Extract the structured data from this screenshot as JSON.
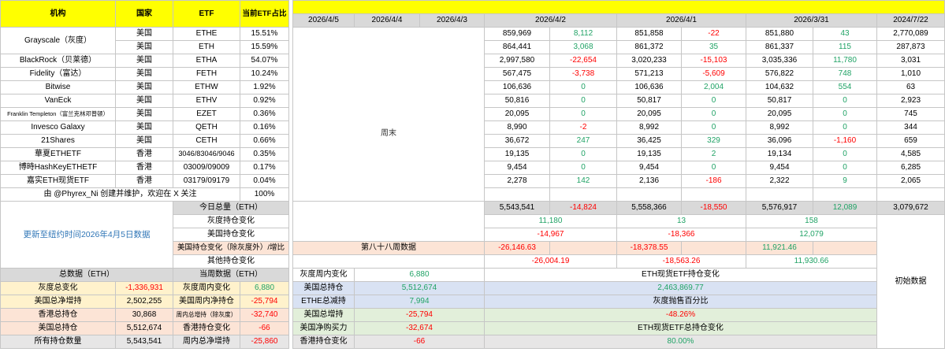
{
  "palette": {
    "yellow": "#FFFF00",
    "header_gray": "#D9D9D9",
    "light_yellow": "#FFF2CC",
    "peach": "#FCE4D6",
    "light_blue": "#D9E2F3",
    "light_green": "#E2EFDA",
    "light_gray": "#E7E6E6",
    "green": "#21A366",
    "red": "#FF0000",
    "blue": "#2E75B6",
    "black": "#000000",
    "grid": "#C6C6C6"
  },
  "header": {
    "left_columns": [
      "机构",
      "国家",
      "ETF",
      "当前ETF占比"
    ],
    "date_columns": [
      "2026/4/5",
      "2026/4/4",
      "2026/4/3",
      "2026/4/2",
      "2026/4/1",
      "2026/3/31",
      "2024/7/22"
    ]
  },
  "weekend_label": "周末",
  "week_label": "第八十八周数据",
  "update_note": "更新至纽约时间2026年4月5日数据",
  "initial_data_label": "初始数据",
  "maintainer": {
    "note": "由 @Phyrex_Ni 创建并维护，欢迎在 X 关注",
    "total_share": "100%"
  },
  "etf_rows": [
    {
      "org": "Grayscale（灰度）",
      "rowspan": 2,
      "country": "美国",
      "ticker": "ETHE",
      "share": "15.51%",
      "cols": [
        [
          "859,969",
          "k"
        ],
        [
          "8,112",
          "g"
        ],
        [
          "851,858",
          "k"
        ],
        [
          "-22",
          "r"
        ],
        [
          "851,880",
          "k"
        ],
        [
          "43",
          "g"
        ],
        [
          "2,770,089",
          "k"
        ]
      ]
    },
    {
      "org": null,
      "country": "美国",
      "ticker": "ETH",
      "share": "15.59%",
      "cols": [
        [
          "864,441",
          "k"
        ],
        [
          "3,068",
          "g"
        ],
        [
          "861,372",
          "k"
        ],
        [
          "35",
          "g"
        ],
        [
          "861,337",
          "k"
        ],
        [
          "115",
          "g"
        ],
        [
          "287,873",
          "k"
        ]
      ]
    },
    {
      "org": "BlackRock（贝莱德）",
      "country": "美国",
      "ticker": "ETHA",
      "share": "54.07%",
      "cols": [
        [
          "2,997,580",
          "k"
        ],
        [
          "-22,654",
          "r"
        ],
        [
          "3,020,233",
          "k"
        ],
        [
          "-15,103",
          "r"
        ],
        [
          "3,035,336",
          "k"
        ],
        [
          "11,780",
          "g"
        ],
        [
          "3,031",
          "k"
        ]
      ]
    },
    {
      "org": "Fidelity（富达）",
      "country": "美国",
      "ticker": "FETH",
      "share": "10.24%",
      "cols": [
        [
          "567,475",
          "k"
        ],
        [
          "-3,738",
          "r"
        ],
        [
          "571,213",
          "k"
        ],
        [
          "-5,609",
          "r"
        ],
        [
          "576,822",
          "k"
        ],
        [
          "748",
          "g"
        ],
        [
          "1,010",
          "k"
        ]
      ]
    },
    {
      "org": "Bitwise",
      "country": "美国",
      "ticker": "ETHW",
      "share": "1.92%",
      "cols": [
        [
          "106,636",
          "k"
        ],
        [
          "0",
          "g"
        ],
        [
          "106,636",
          "k"
        ],
        [
          "2,004",
          "g"
        ],
        [
          "104,632",
          "k"
        ],
        [
          "554",
          "g"
        ],
        [
          "63",
          "k"
        ]
      ]
    },
    {
      "org": "VanEck",
      "country": "美国",
      "ticker": "ETHV",
      "share": "0.92%",
      "cols": [
        [
          "50,816",
          "k"
        ],
        [
          "0",
          "g"
        ],
        [
          "50,817",
          "k"
        ],
        [
          "0",
          "g"
        ],
        [
          "50,817",
          "k"
        ],
        [
          "0",
          "g"
        ],
        [
          "2,923",
          "k"
        ]
      ]
    },
    {
      "org": "Franklin Templeton（富兰克林邓普顿）",
      "country": "美国",
      "ticker": "EZET",
      "share": "0.36%",
      "cols": [
        [
          "20,095",
          "k"
        ],
        [
          "0",
          "g"
        ],
        [
          "20,095",
          "k"
        ],
        [
          "0",
          "g"
        ],
        [
          "20,095",
          "k"
        ],
        [
          "0",
          "g"
        ],
        [
          "745",
          "k"
        ]
      ]
    },
    {
      "org": "Invesco Galaxy",
      "country": "美国",
      "ticker": "QETH",
      "share": "0.16%",
      "cols": [
        [
          "8,990",
          "k"
        ],
        [
          "-2",
          "r"
        ],
        [
          "8,992",
          "k"
        ],
        [
          "0",
          "g"
        ],
        [
          "8,992",
          "k"
        ],
        [
          "0",
          "g"
        ],
        [
          "344",
          "k"
        ]
      ]
    },
    {
      "org": "21Shares",
      "country": "美国",
      "ticker": "CETH",
      "share": "0.66%",
      "cols": [
        [
          "36,672",
          "k"
        ],
        [
          "247",
          "g"
        ],
        [
          "36,425",
          "k"
        ],
        [
          "329",
          "g"
        ],
        [
          "36,096",
          "k"
        ],
        [
          "-1,160",
          "r"
        ],
        [
          "659",
          "k"
        ]
      ]
    },
    {
      "org": "華夏ETHETF",
      "country": "香港",
      "ticker": "3046/83046/9046",
      "share": "0.35%",
      "cols": [
        [
          "19,135",
          "k"
        ],
        [
          "0",
          "g"
        ],
        [
          "19,135",
          "k"
        ],
        [
          "2",
          "g"
        ],
        [
          "19,134",
          "k"
        ],
        [
          "0",
          "g"
        ],
        [
          "4,585",
          "k"
        ]
      ]
    },
    {
      "org": "博時HashKeyETHETF",
      "country": "香港",
      "ticker": "03009/09009",
      "share": "0.17%",
      "cols": [
        [
          "9,454",
          "k"
        ],
        [
          "0",
          "g"
        ],
        [
          "9,454",
          "k"
        ],
        [
          "0",
          "g"
        ],
        [
          "9,454",
          "k"
        ],
        [
          "0",
          "g"
        ],
        [
          "6,285",
          "k"
        ]
      ]
    },
    {
      "org": "嘉实ETH现货ETF",
      "country": "香港",
      "ticker": "03179/09179",
      "share": "0.04%",
      "cols": [
        [
          "2,278",
          "k"
        ],
        [
          "142",
          "g"
        ],
        [
          "2,136",
          "k"
        ],
        [
          "-186",
          "r"
        ],
        [
          "2,322",
          "k"
        ],
        [
          "9",
          "g"
        ],
        [
          "2,065",
          "k"
        ]
      ]
    }
  ],
  "daily_summary": [
    {
      "label": "今日总量（ETH）",
      "type": "full",
      "cells": [
        [
          "5,543,541",
          "k"
        ],
        [
          "-14,824",
          "r"
        ],
        [
          "5,558,366",
          "k"
        ],
        [
          "-18,550",
          "r"
        ],
        [
          "5,576,917",
          "k"
        ],
        [
          "12,089",
          "g"
        ],
        [
          "3,079,672",
          "k"
        ]
      ]
    },
    {
      "label": "灰度持仓变化",
      "type": "merged",
      "cells": [
        [
          "11,180",
          "g"
        ],
        [
          "13",
          "g"
        ],
        [
          "158",
          "g"
        ]
      ]
    },
    {
      "label": "美国持仓变化",
      "type": "merged",
      "cells": [
        [
          "-14,967",
          "r"
        ],
        [
          "-18,366",
          "r"
        ],
        [
          "12,079",
          "g"
        ]
      ]
    },
    {
      "label": "美国持仓变化（除灰度外）/增比",
      "type": "week",
      "cells": [
        [
          "-26,146.63",
          "r"
        ],
        [
          "",
          "k"
        ],
        [
          "-18,378.55",
          "r"
        ],
        [
          "",
          "k"
        ],
        [
          "11,921.46",
          "g"
        ],
        [
          "",
          "k"
        ]
      ]
    },
    {
      "label": "其他持仓变化",
      "type": "merged",
      "cells": [
        [
          "-26,004.19",
          "r"
        ],
        [
          "-18,563.26",
          "r"
        ],
        [
          "11,930.66",
          "g"
        ]
      ]
    }
  ],
  "totals_header": {
    "total": "总数据（ETH）",
    "week": "当周数据（ETH）",
    "c_label": "灰度周内变化",
    "c_value": [
      "6,880",
      "g"
    ],
    "wide": "ETH现货ETF持仓变化"
  },
  "totals_rows": [
    {
      "style": "a",
      "a_label": "灰度总变化",
      "a_value": [
        "-1,336,931",
        "r"
      ],
      "b_label": "灰度周内变化",
      "b_value": [
        "6,880",
        "g"
      ],
      "c_label": "美国总持仓",
      "c_value": [
        "5,512,674",
        "g"
      ],
      "wide": [
        "2,463,869.77",
        "g"
      ]
    },
    {
      "style": "a",
      "a_label": "美国总净增持",
      "a_value": [
        "2,502,255",
        "k"
      ],
      "b_label": "美国周内净持仓",
      "b_value": [
        "-25,794",
        "r"
      ],
      "c_label": "ETHE总减持",
      "c_value": [
        "7,994",
        "g"
      ],
      "wide": [
        "灰度抛售百分比",
        "k"
      ]
    },
    {
      "style": "b",
      "a_label": "香港总持仓",
      "a_value": [
        "30,868",
        "k"
      ],
      "b_label": "周内总增持（除灰度）",
      "b_value": [
        "-32,740",
        "r"
      ],
      "c_label": "美国总增持",
      "c_value": [
        "-25,794",
        "r"
      ],
      "wide": [
        "-48.26%",
        "r"
      ]
    },
    {
      "style": "b",
      "a_label": "美国总持仓",
      "a_value": [
        "5,512,674",
        "k"
      ],
      "b_label": "香港持仓变化",
      "b_value": [
        "-66",
        "r"
      ],
      "c_label": "美国净购买力",
      "c_value": [
        "-32,674",
        "r"
      ],
      "wide": [
        "ETH现货ETF总持仓变化",
        "k"
      ]
    },
    {
      "style": "c",
      "a_label": "所有持仓数量",
      "a_value": [
        "5,543,541",
        "k"
      ],
      "b_label": "周内总净增持",
      "b_value": [
        "-25,860",
        "r"
      ],
      "c_label": "香港持仓变化",
      "c_value": [
        "-66",
        "r"
      ],
      "wide": [
        "80.00%",
        "g"
      ]
    }
  ]
}
